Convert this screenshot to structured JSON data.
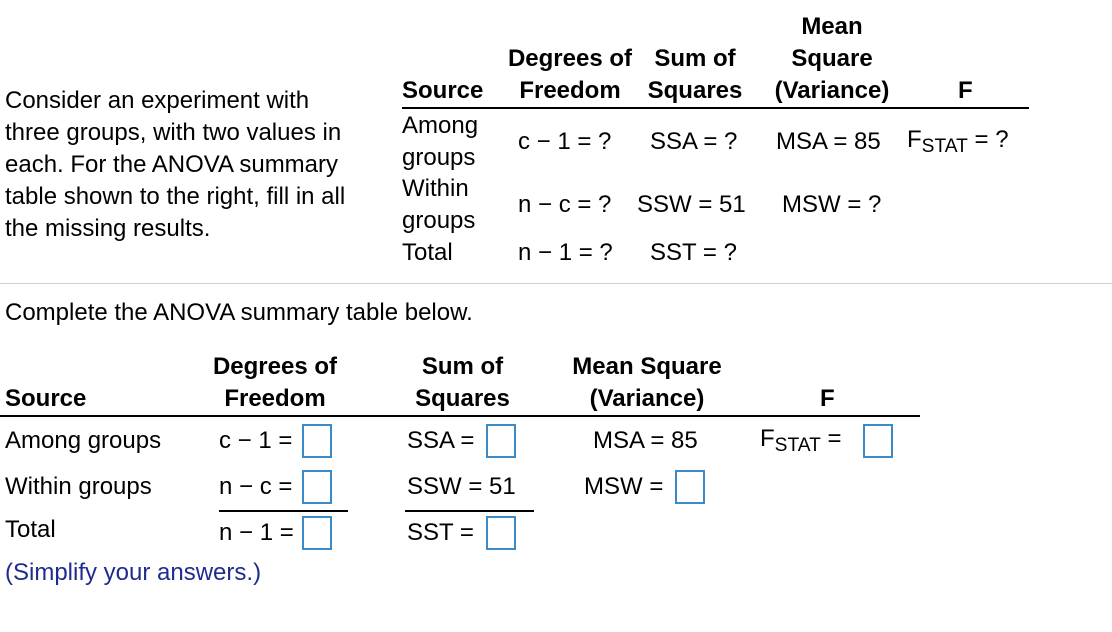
{
  "prompt": {
    "lines": [
      "Consider an experiment with",
      "three groups, with two values in",
      "each. For the ANOVA summary",
      "table shown to the right, fill in all",
      "the missing results."
    ]
  },
  "given_table": {
    "headers": {
      "source": "Source",
      "df": [
        "Degrees of",
        "Freedom"
      ],
      "ss": [
        "Sum of",
        "Squares"
      ],
      "ms": [
        "Mean",
        "Square",
        "(Variance)"
      ],
      "f": "F"
    },
    "rows": {
      "among": {
        "source": [
          "Among",
          "groups"
        ],
        "df": "c − 1 = ?",
        "ss": "SSA = ?",
        "ms": "MSA = 85",
        "f_main": "F",
        "f_sub": "STAT",
        "f_rest": " = ?"
      },
      "within": {
        "source": [
          "Within",
          "groups"
        ],
        "df": "n − c = ?",
        "ss": "SSW = 51",
        "ms": "MSW = ?"
      },
      "total": {
        "source": "Total",
        "df": "n − 1 = ?",
        "ss": "SST = ?"
      }
    }
  },
  "instruction": "Complete the ANOVA summary table below.",
  "answer_table": {
    "headers": {
      "source": "Source",
      "df": [
        "Degrees of",
        "Freedom"
      ],
      "ss": [
        "Sum of",
        "Squares"
      ],
      "ms": [
        "Mean Square",
        "(Variance)"
      ],
      "f": "F"
    },
    "rows": {
      "among": {
        "label": "Among groups",
        "df": "c − 1 =",
        "ss": "SSA =",
        "ms": "MSA = 85",
        "f_main": "F",
        "f_sub": "STAT",
        "f_eq": " ="
      },
      "within": {
        "label": "Within groups",
        "df": "n − c =",
        "ss": "SSW = 51",
        "ms": "MSW ="
      },
      "total": {
        "label": "Total",
        "df": "n − 1 =",
        "ss": "SST ="
      }
    }
  },
  "note": "(Simplify your answers.)",
  "colors": {
    "input_border": "#3b8bc8",
    "note_text": "#1f2c8f"
  }
}
